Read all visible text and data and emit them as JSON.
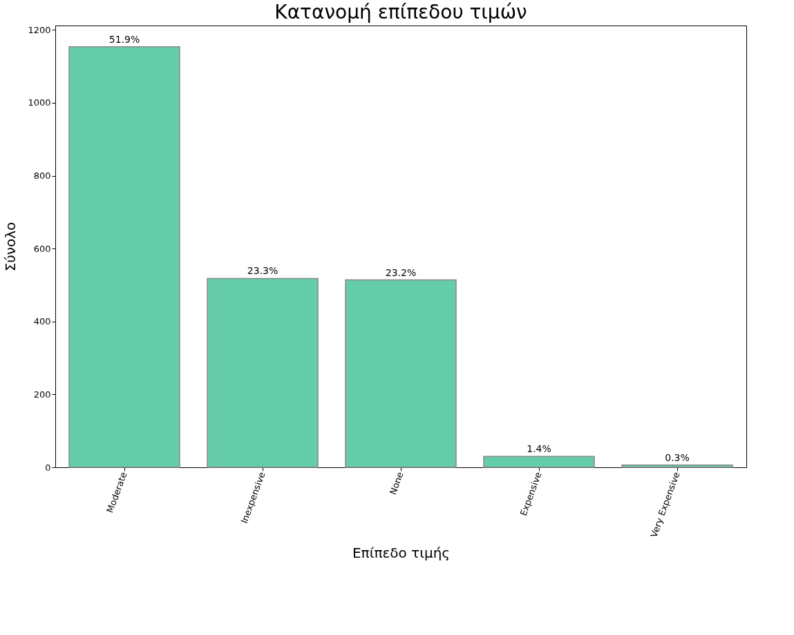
{
  "chart_data": {
    "type": "bar",
    "title": "Κατανομή επίπεδου τιμών",
    "xlabel": "Επίπεδο τιμής",
    "ylabel": "Σύνολο",
    "categories": [
      "Moderate",
      "Inexpensive",
      "None",
      "Expensive",
      "Very Expensive"
    ],
    "values": [
      1154,
      518,
      514,
      30,
      6
    ],
    "annotations": [
      {
        "text": "51.9%",
        "x": "Moderate",
        "y": 1154
      },
      {
        "text": "23.3%",
        "x": "Inexpensive",
        "y": 518
      },
      {
        "text": "23.2%",
        "x": "None",
        "y": 514
      },
      {
        "text": "1.4%",
        "x": "Expensive",
        "y": 30
      },
      {
        "text": "0.3%",
        "x": "Very Expensive",
        "y": 6
      }
    ],
    "color": "#66cdaa",
    "ylim": [
      0,
      1212
    ],
    "yticks": [
      0,
      200,
      400,
      600,
      800,
      1000,
      1200
    ],
    "grid": false
  }
}
